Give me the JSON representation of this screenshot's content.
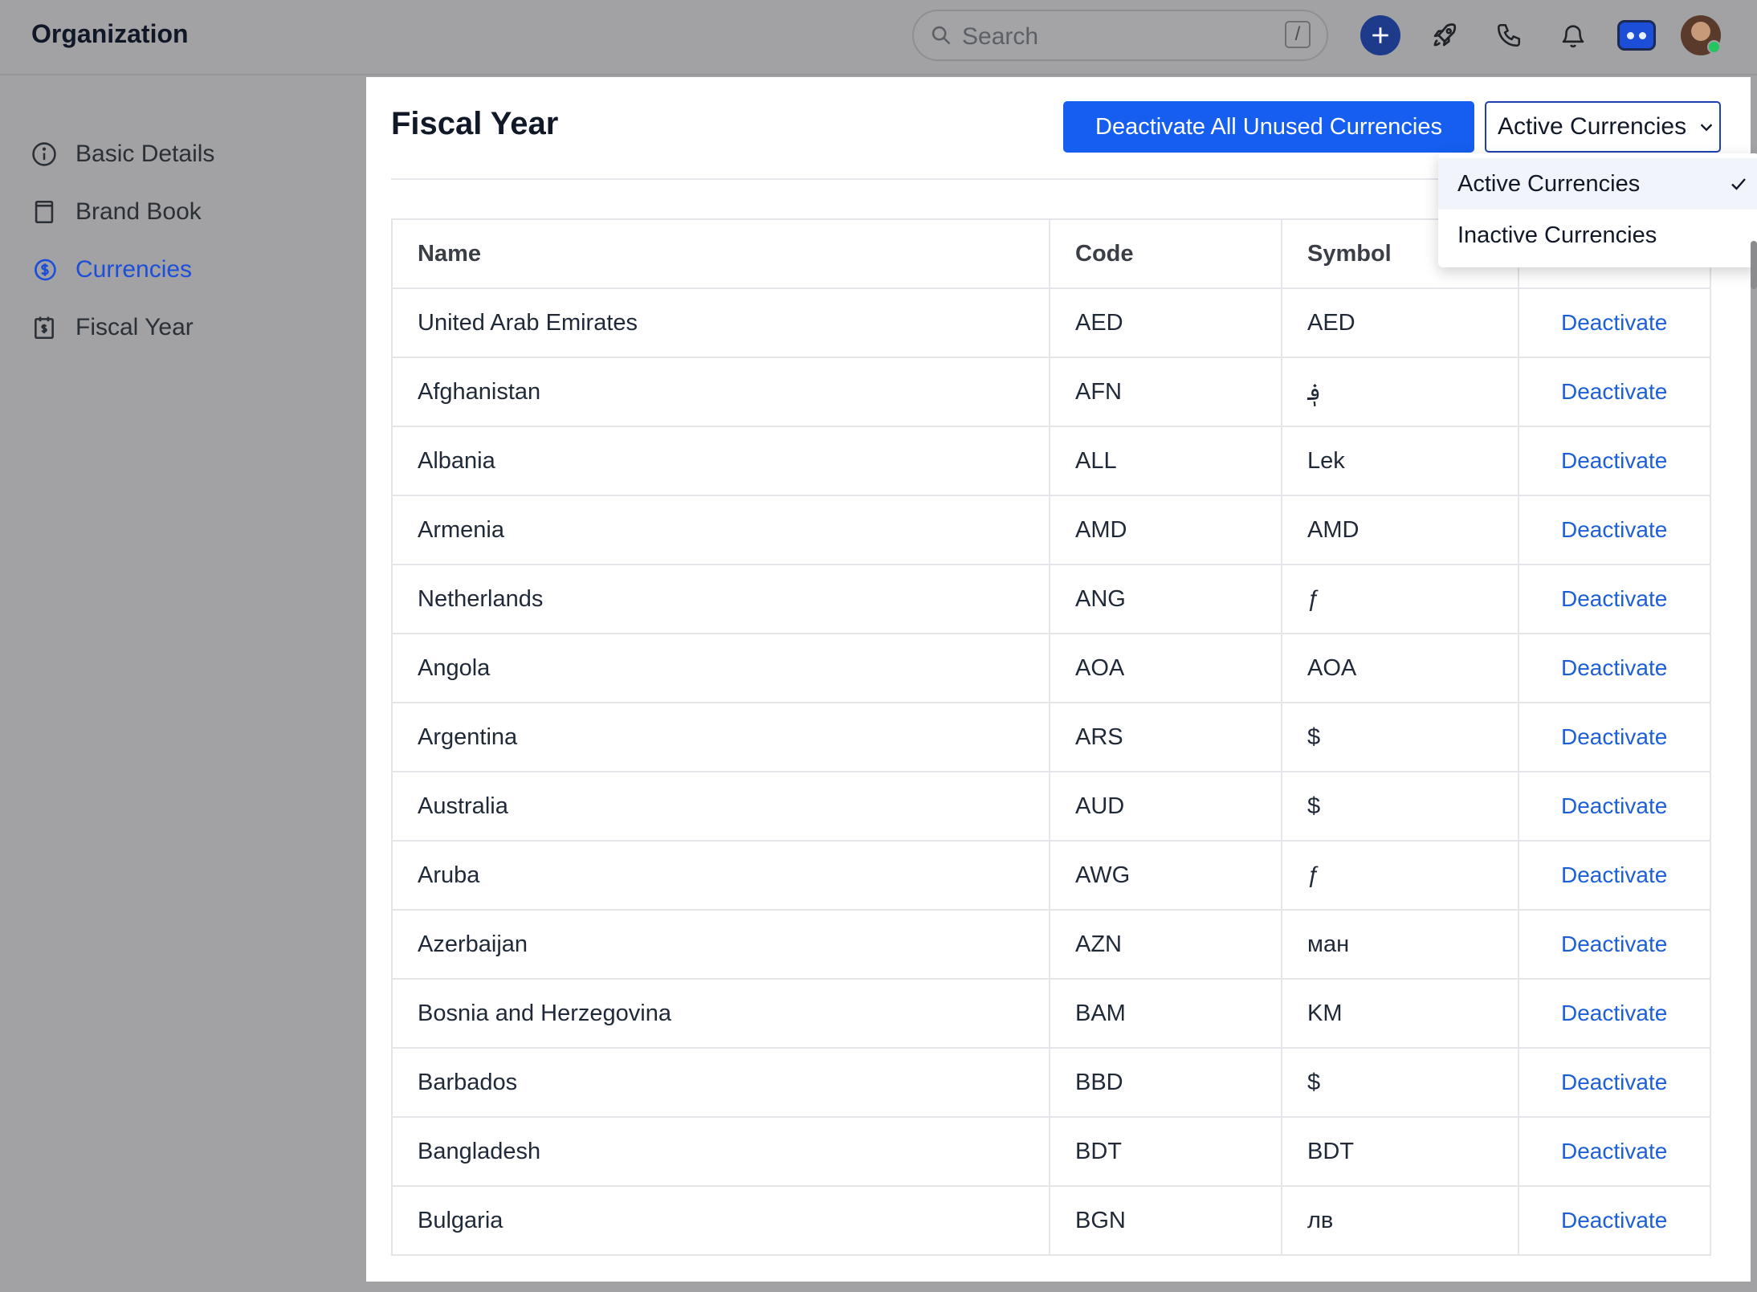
{
  "app": {
    "title": "Organization"
  },
  "search": {
    "placeholder": "Search",
    "shortcut": "/"
  },
  "topbar_icons": [
    "plus-icon",
    "rocket-icon",
    "phone-icon",
    "bell-icon",
    "bot-icon",
    "avatar"
  ],
  "sidebar": {
    "items": [
      {
        "label": "Basic Details",
        "icon": "info-icon",
        "active": false
      },
      {
        "label": "Brand Book",
        "icon": "book-icon",
        "active": false
      },
      {
        "label": "Currencies",
        "icon": "currency-icon",
        "active": true
      },
      {
        "label": "Fiscal Year",
        "icon": "calendar-icon",
        "active": false
      }
    ]
  },
  "main": {
    "title": "Fiscal Year",
    "deactivate_all_label": "Deactivate All Unused Currencies",
    "filter_selected": "Active Currencies",
    "filter_options": [
      "Active Currencies",
      "Inactive Currencies"
    ]
  },
  "table": {
    "headers": [
      "Name",
      "Code",
      "Symbol"
    ],
    "action_label": "Deactivate",
    "rows": [
      {
        "name": "United Arab Emirates",
        "code": "AED",
        "symbol": "AED"
      },
      {
        "name": "Afghanistan",
        "code": "AFN",
        "symbol": "؋"
      },
      {
        "name": "Albania",
        "code": "ALL",
        "symbol": "Lek"
      },
      {
        "name": "Armenia",
        "code": "AMD",
        "symbol": "AMD"
      },
      {
        "name": "Netherlands",
        "code": "ANG",
        "symbol": "ƒ"
      },
      {
        "name": "Angola",
        "code": "AOA",
        "symbol": "AOA"
      },
      {
        "name": "Argentina",
        "code": "ARS",
        "symbol": "$"
      },
      {
        "name": "Australia",
        "code": "AUD",
        "symbol": "$"
      },
      {
        "name": "Aruba",
        "code": "AWG",
        "symbol": "ƒ"
      },
      {
        "name": "Azerbaijan",
        "code": "AZN",
        "symbol": "ман"
      },
      {
        "name": "Bosnia and Herzegovina",
        "code": "BAM",
        "symbol": "KM"
      },
      {
        "name": "Barbados",
        "code": "BBD",
        "symbol": "$"
      },
      {
        "name": "Bangladesh",
        "code": "BDT",
        "symbol": "BDT"
      },
      {
        "name": "Bulgaria",
        "code": "BGN",
        "symbol": "лв"
      }
    ]
  },
  "colors": {
    "primary": "#155EEF",
    "active_nav": "#1D4ED8",
    "link": "#1D5FD6",
    "overlay": "#A2A2A4"
  }
}
